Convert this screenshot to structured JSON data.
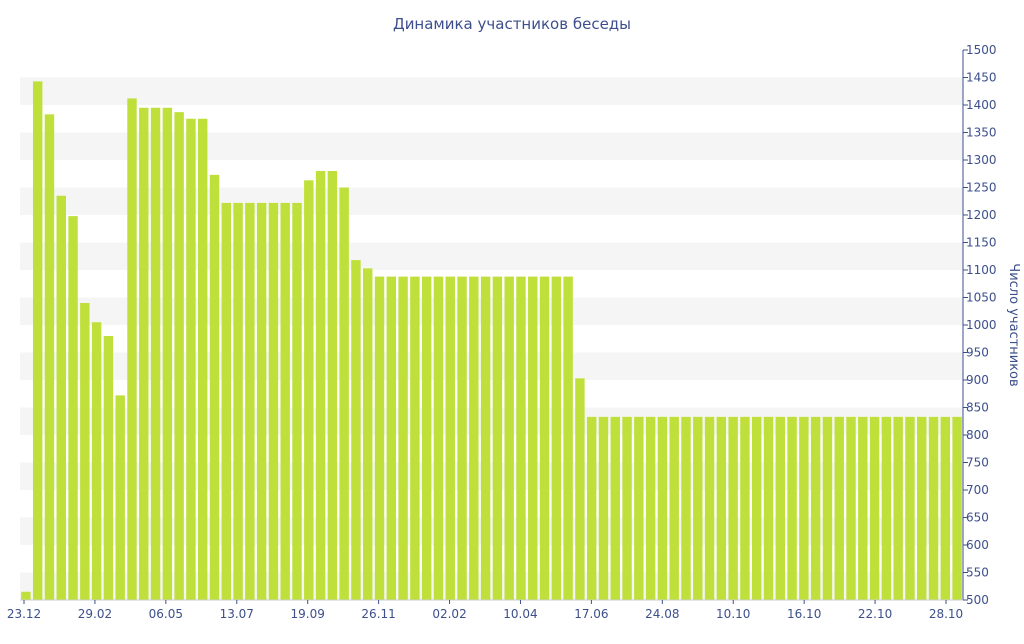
{
  "chart_data": {
    "type": "bar",
    "title": "Динамика участников беседы",
    "xlabel": "",
    "ylabel": "Число участников",
    "ylim": [
      500,
      1500
    ],
    "y_ticks": [
      500,
      550,
      600,
      650,
      700,
      750,
      800,
      850,
      900,
      950,
      1000,
      1050,
      1100,
      1150,
      1200,
      1250,
      1300,
      1350,
      1400,
      1450,
      1500
    ],
    "y_axis_position": "right",
    "x_tick_labels": [
      "23.12",
      "29.02",
      "06.05",
      "13.07",
      "19.09",
      "26.11",
      "02.02",
      "10.04",
      "17.06",
      "24.08",
      "10.10",
      "16.10",
      "22.10",
      "28.10"
    ],
    "grid": "horizontal alternating bands",
    "series": [
      {
        "values": [
          515,
          1443,
          1383,
          1235,
          1198,
          1040,
          1005,
          980,
          872,
          1412,
          1395,
          1395,
          1395,
          1387,
          1375,
          1375,
          1273,
          1222,
          1222,
          1222,
          1222,
          1222,
          1222,
          1222,
          1263,
          1280,
          1280,
          1250,
          1118,
          1103,
          1088,
          1088,
          1088,
          1088,
          1088,
          1088,
          1088,
          1088,
          1088,
          1088,
          1088,
          1088,
          1088,
          1088,
          1088,
          1088,
          1088,
          903,
          833,
          833,
          833,
          833,
          833,
          833,
          833,
          833,
          833,
          833,
          833,
          833,
          833,
          833,
          833,
          833,
          833,
          833,
          833,
          833,
          833,
          833,
          833,
          833,
          833,
          833,
          833,
          833,
          833,
          833,
          833,
          833
        ]
      }
    ]
  },
  "colors": {
    "bar": "#bfe03a",
    "band": "#f5f5f5",
    "text": "#3d4f8c",
    "axis": "#3d4f8c"
  }
}
